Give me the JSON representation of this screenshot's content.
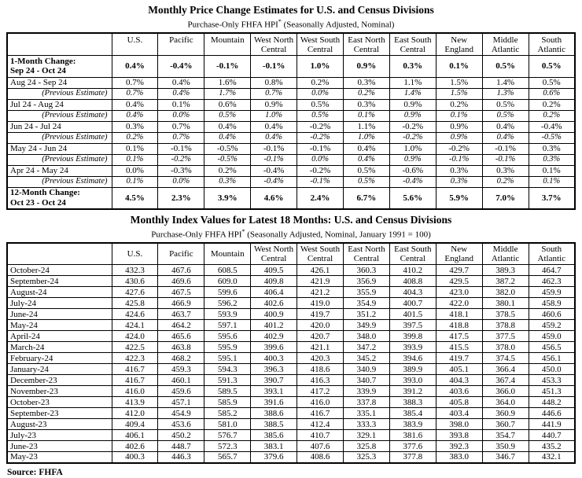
{
  "table1": {
    "title": "Monthly Price Change Estimates for U.S. and Census Divisions",
    "subtitle": {
      "pre": "Purchase-Only FHFA HPI",
      "sup": "*",
      "post": " (Seasonally Adjusted, Nominal)"
    },
    "columns": [
      [
        "U.S."
      ],
      [
        "Pacific"
      ],
      [
        "Mountain"
      ],
      [
        "West North",
        "Central"
      ],
      [
        "West South",
        "Central"
      ],
      [
        "East North",
        "Central"
      ],
      [
        "East South",
        "Central"
      ],
      [
        "New",
        "England"
      ],
      [
        "Middle",
        "Atlantic"
      ],
      [
        "South",
        "Atlantic"
      ]
    ],
    "rows": [
      {
        "kind": "summary",
        "label_lines": [
          "1-Month Change:",
          "Sep 24 - Oct 24"
        ],
        "values": [
          "0.4%",
          "-0.4%",
          "-0.1%",
          "-0.1%",
          "1.0%",
          "0.9%",
          "0.3%",
          "0.1%",
          "0.5%",
          "0.5%"
        ]
      },
      {
        "kind": "month",
        "label_lines": [
          "Aug 24 - Sep 24"
        ],
        "values": [
          "0.7%",
          "0.4%",
          "1.6%",
          "0.8%",
          "0.2%",
          "0.3%",
          "1.1%",
          "1.5%",
          "1.4%",
          "0.5%"
        ]
      },
      {
        "kind": "previous",
        "label_lines": [
          "(Previous Estimate)"
        ],
        "values": [
          "0.7%",
          "0.4%",
          "1.7%",
          "0.7%",
          "0.0%",
          "0.2%",
          "1.4%",
          "1.5%",
          "1.3%",
          "0.6%"
        ]
      },
      {
        "kind": "month",
        "label_lines": [
          "Jul 24 - Aug 24"
        ],
        "values": [
          "0.4%",
          "0.1%",
          "0.6%",
          "0.9%",
          "0.5%",
          "0.3%",
          "0.9%",
          "0.2%",
          "0.5%",
          "0.2%"
        ]
      },
      {
        "kind": "previous",
        "label_lines": [
          "(Previous Estimate)"
        ],
        "values": [
          "0.4%",
          "0.0%",
          "0.5%",
          "1.0%",
          "0.5%",
          "0.1%",
          "0.9%",
          "0.1%",
          "0.5%",
          "0.2%"
        ]
      },
      {
        "kind": "month",
        "label_lines": [
          "Jun 24 - Jul 24"
        ],
        "values": [
          "0.3%",
          "0.7%",
          "0.4%",
          "0.4%",
          "-0.2%",
          "1.1%",
          "-0.2%",
          "0.9%",
          "0.4%",
          "-0.4%"
        ]
      },
      {
        "kind": "previous",
        "label_lines": [
          "(Previous Estimate)"
        ],
        "values": [
          "0.2%",
          "0.7%",
          "0.4%",
          "0.4%",
          "-0.2%",
          "1.0%",
          "-0.2%",
          "0.9%",
          "0.4%",
          "-0.5%"
        ]
      },
      {
        "kind": "month",
        "label_lines": [
          "May 24 - Jun 24"
        ],
        "values": [
          "0.1%",
          "-0.1%",
          "-0.5%",
          "-0.1%",
          "-0.1%",
          "0.4%",
          "1.0%",
          "-0.2%",
          "-0.1%",
          "0.3%"
        ]
      },
      {
        "kind": "previous",
        "label_lines": [
          "(Previous Estimate)"
        ],
        "values": [
          "0.1%",
          "-0.2%",
          "-0.5%",
          "-0.1%",
          "0.0%",
          "0.4%",
          "0.9%",
          "-0.1%",
          "-0.1%",
          "0.3%"
        ]
      },
      {
        "kind": "month",
        "label_lines": [
          "Apr 24 - May 24"
        ],
        "values": [
          "0.0%",
          "-0.3%",
          "0.2%",
          "-0.4%",
          "-0.2%",
          "0.5%",
          "-0.6%",
          "0.3%",
          "0.3%",
          "0.1%"
        ]
      },
      {
        "kind": "previous",
        "label_lines": [
          "(Previous Estimate)"
        ],
        "values": [
          "0.1%",
          "0.0%",
          "0.3%",
          "-0.4%",
          "-0.1%",
          "0.5%",
          "-0.4%",
          "0.3%",
          "0.2%",
          "0.1%"
        ]
      },
      {
        "kind": "summary",
        "label_lines": [
          "12-Month Change:",
          "Oct 23 - Oct 24"
        ],
        "values": [
          "4.5%",
          "2.3%",
          "3.9%",
          "4.6%",
          "2.4%",
          "6.7%",
          "5.6%",
          "5.9%",
          "7.0%",
          "3.7%"
        ]
      }
    ]
  },
  "table2": {
    "title": "Monthly Index Values for Latest 18 Months: U.S. and Census Divisions",
    "subtitle": {
      "pre": "Purchase-Only FHFA HPI",
      "sup": "*",
      "post": " (Seasonally Adjusted, Nominal, January 1991 = 100)"
    },
    "columns": [
      [
        "U.S."
      ],
      [
        "Pacific"
      ],
      [
        "Mountain"
      ],
      [
        "West North",
        "Central"
      ],
      [
        "West South",
        "Central"
      ],
      [
        "East North",
        "Central"
      ],
      [
        "East South",
        "Central"
      ],
      [
        "New",
        "England"
      ],
      [
        "Middle",
        "Atlantic"
      ],
      [
        "South",
        "Atlantic"
      ]
    ],
    "rows": [
      {
        "label": "October-24",
        "values": [
          "432.3",
          "467.6",
          "608.5",
          "409.5",
          "426.1",
          "360.3",
          "410.2",
          "429.7",
          "389.3",
          "464.7"
        ]
      },
      {
        "label": "September-24",
        "values": [
          "430.6",
          "469.6",
          "609.0",
          "409.8",
          "421.9",
          "356.9",
          "408.8",
          "429.5",
          "387.2",
          "462.3"
        ]
      },
      {
        "label": "August-24",
        "values": [
          "427.6",
          "467.5",
          "599.6",
          "406.4",
          "421.2",
          "355.9",
          "404.3",
          "423.0",
          "382.0",
          "459.9"
        ]
      },
      {
        "label": "July-24",
        "values": [
          "425.8",
          "466.9",
          "596.2",
          "402.6",
          "419.0",
          "354.9",
          "400.7",
          "422.0",
          "380.1",
          "458.9"
        ]
      },
      {
        "label": "June-24",
        "values": [
          "424.6",
          "463.7",
          "593.9",
          "400.9",
          "419.7",
          "351.2",
          "401.5",
          "418.1",
          "378.5",
          "460.6"
        ]
      },
      {
        "label": "May-24",
        "values": [
          "424.1",
          "464.2",
          "597.1",
          "401.2",
          "420.0",
          "349.9",
          "397.5",
          "418.8",
          "378.8",
          "459.2"
        ]
      },
      {
        "label": "April-24",
        "values": [
          "424.0",
          "465.6",
          "595.6",
          "402.9",
          "420.7",
          "348.0",
          "399.8",
          "417.5",
          "377.5",
          "459.0"
        ]
      },
      {
        "label": "March-24",
        "values": [
          "422.5",
          "463.8",
          "595.9",
          "399.6",
          "421.1",
          "347.2",
          "393.9",
          "415.5",
          "378.0",
          "456.5"
        ]
      },
      {
        "label": "February-24",
        "values": [
          "422.3",
          "468.2",
          "595.1",
          "400.3",
          "420.3",
          "345.2",
          "394.6",
          "419.7",
          "374.5",
          "456.1"
        ]
      },
      {
        "label": "January-24",
        "values": [
          "416.7",
          "459.3",
          "594.3",
          "396.3",
          "418.6",
          "340.9",
          "389.9",
          "405.1",
          "366.4",
          "450.0"
        ]
      },
      {
        "label": "December-23",
        "values": [
          "416.7",
          "460.1",
          "591.3",
          "390.7",
          "416.3",
          "340.7",
          "393.0",
          "404.3",
          "367.4",
          "453.3"
        ]
      },
      {
        "label": "November-23",
        "values": [
          "416.0",
          "459.6",
          "589.5",
          "393.1",
          "417.2",
          "339.9",
          "391.2",
          "403.6",
          "366.0",
          "451.3"
        ]
      },
      {
        "label": "October-23",
        "values": [
          "413.9",
          "457.1",
          "585.9",
          "391.6",
          "416.0",
          "337.8",
          "388.3",
          "405.8",
          "364.0",
          "448.2"
        ]
      },
      {
        "label": "September-23",
        "values": [
          "412.0",
          "454.9",
          "585.2",
          "388.6",
          "416.7",
          "335.1",
          "385.4",
          "403.4",
          "360.9",
          "446.6"
        ]
      },
      {
        "label": "August-23",
        "values": [
          "409.4",
          "453.6",
          "581.0",
          "388.5",
          "412.4",
          "333.3",
          "383.9",
          "398.0",
          "360.7",
          "441.9"
        ]
      },
      {
        "label": "July-23",
        "values": [
          "406.1",
          "450.2",
          "576.7",
          "385.6",
          "410.7",
          "329.1",
          "381.6",
          "393.8",
          "354.7",
          "440.7"
        ]
      },
      {
        "label": "June-23",
        "values": [
          "402.6",
          "448.7",
          "572.3",
          "383.1",
          "407.6",
          "325.8",
          "377.6",
          "392.3",
          "350.9",
          "435.2"
        ]
      },
      {
        "label": "May-23",
        "values": [
          "400.3",
          "446.3",
          "565.7",
          "379.6",
          "408.6",
          "325.3",
          "377.8",
          "383.0",
          "346.7",
          "432.1"
        ]
      }
    ]
  },
  "source": "Source: FHFA"
}
